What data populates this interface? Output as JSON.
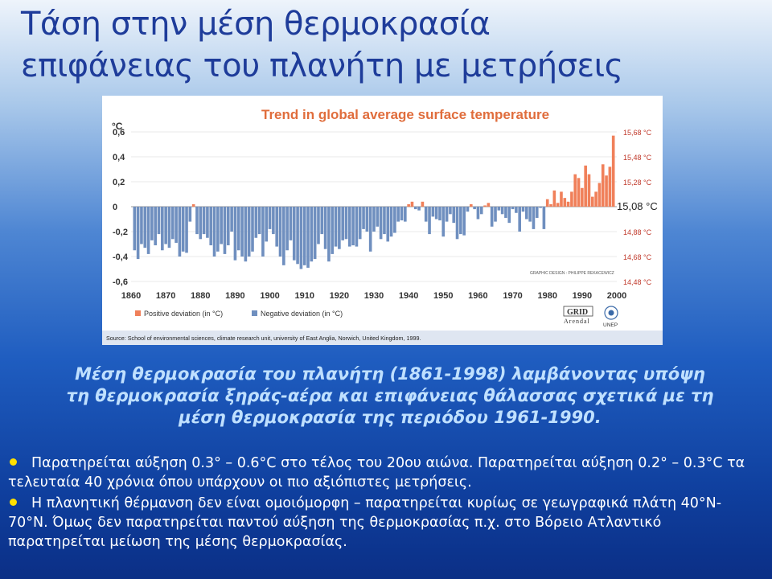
{
  "slide": {
    "title_line1": "Τάση στην μέση θερμοκρασία",
    "title_line2": "επιφάνειας του πλανήτη με μετρήσεις",
    "caption_line1": "Μέση θερμοκρασία του πλανήτη (1861-1998) λαμβάνοντας υπόψη",
    "caption_line2": "τη θερμοκρασία ξηράς-αέρα και επιφάνειας θάλασσας σχετικά με τη",
    "caption_line3": "μέση θερμοκρασία της περιόδου 1961-1990.",
    "bullet1": "Παρατηρείται αύξηση 0.3° – 0.6°C στο τέλος του 20ου αιώνα. Παρατηρείται αύξηση 0.2° – 0.3°C τα τελευταία 40 χρόνια όπου υπάρχουν οι πιο αξιόπιστες μετρήσεις.",
    "bullet2": "Η πλανητική θέρμανση δεν είναι ομοιόμορφη – παρατηρείται κυρίως σε γεωγραφικά πλάτη 40°N-70°N. Όμως δεν παρατηρείται παντού αύξηση της θερμοκρασίας π.χ. στο Βόρειο Ατλαντικό παρατηρείται μείωση της μέσης θερμοκρασίας."
  },
  "colors": {
    "positive": "#f0805a",
    "negative": "#6f8fbf",
    "title_chart": "#e06d3c",
    "caption": "#bfe0ff",
    "bullet_dot": "#ffe000"
  },
  "chart_data": {
    "type": "bar",
    "title": "Trend in global average surface temperature",
    "yunit": "°C",
    "ylim": [
      -0.6,
      0.6
    ],
    "yticks": [
      0.6,
      0.4,
      0.2,
      0,
      -0.2,
      -0.4,
      -0.6
    ],
    "ytick_labels": [
      "0,6",
      "0,4",
      "0,2",
      "0",
      "-0,2",
      "-0,4",
      "-0,6"
    ],
    "right_ticks": [
      0.6,
      0.4,
      0.2,
      0,
      -0.2,
      -0.4,
      -0.6
    ],
    "right_labels": [
      "15,68 °C",
      "15,48 °C",
      "15,28 °C",
      "15,08 °C",
      "14,88 °C",
      "14,68 °C",
      "14,48 °C"
    ],
    "xlim": [
      1860,
      2000
    ],
    "xticks": [
      1860,
      1870,
      1880,
      1890,
      1900,
      1910,
      1920,
      1930,
      1940,
      1950,
      1960,
      1970,
      1980,
      1990,
      2000
    ],
    "x_start": 1861,
    "values": [
      -0.35,
      -0.42,
      -0.3,
      -0.33,
      -0.38,
      -0.27,
      -0.31,
      -0.22,
      -0.35,
      -0.3,
      -0.33,
      -0.26,
      -0.29,
      -0.4,
      -0.36,
      -0.37,
      -0.12,
      0.02,
      -0.22,
      -0.26,
      -0.22,
      -0.25,
      -0.31,
      -0.4,
      -0.36,
      -0.3,
      -0.38,
      -0.31,
      -0.2,
      -0.43,
      -0.35,
      -0.4,
      -0.44,
      -0.4,
      -0.36,
      -0.25,
      -0.22,
      -0.4,
      -0.28,
      -0.18,
      -0.22,
      -0.32,
      -0.4,
      -0.47,
      -0.35,
      -0.27,
      -0.43,
      -0.46,
      -0.5,
      -0.47,
      -0.49,
      -0.44,
      -0.42,
      -0.3,
      -0.22,
      -0.34,
      -0.44,
      -0.38,
      -0.32,
      -0.34,
      -0.27,
      -0.26,
      -0.32,
      -0.31,
      -0.32,
      -0.26,
      -0.18,
      -0.2,
      -0.36,
      -0.2,
      -0.16,
      -0.26,
      -0.22,
      -0.28,
      -0.24,
      -0.21,
      -0.12,
      -0.11,
      -0.12,
      0.02,
      0.04,
      -0.02,
      -0.03,
      0.04,
      -0.12,
      -0.22,
      -0.08,
      -0.1,
      -0.11,
      -0.24,
      -0.12,
      -0.06,
      -0.13,
      -0.26,
      -0.22,
      -0.23,
      -0.04,
      0.02,
      -0.02,
      -0.1,
      -0.06,
      0.01,
      0.03,
      -0.16,
      -0.12,
      -0.03,
      -0.06,
      -0.09,
      -0.13,
      -0.02,
      -0.05,
      -0.2,
      -0.04,
      -0.1,
      -0.12,
      -0.18,
      -0.09,
      -0.01,
      -0.18,
      0.06,
      0.02,
      0.13,
      0.03,
      0.12,
      0.07,
      0.04,
      0.12,
      0.26,
      0.23,
      0.15,
      0.33,
      0.26,
      0.08,
      0.12,
      0.19,
      0.34,
      0.25,
      0.32,
      0.57
    ],
    "legend": [
      {
        "label": "Positive deviation (in °C)",
        "color": "#f0805a"
      },
      {
        "label": "Negative deviation (in °C)",
        "color": "#6f8fbf"
      }
    ],
    "legend_position": "bottom-left",
    "credit": "GRAPHIC DESIGN : PHILIPPE REKACEWICZ",
    "logo_grid": "GRID",
    "logo_arendal": "Arendal",
    "logo_unep": "UNEP",
    "source": "Source: School of environmental sciences, climate research unit, university of East Anglia, Norwich, United Kingdom, 1999."
  }
}
